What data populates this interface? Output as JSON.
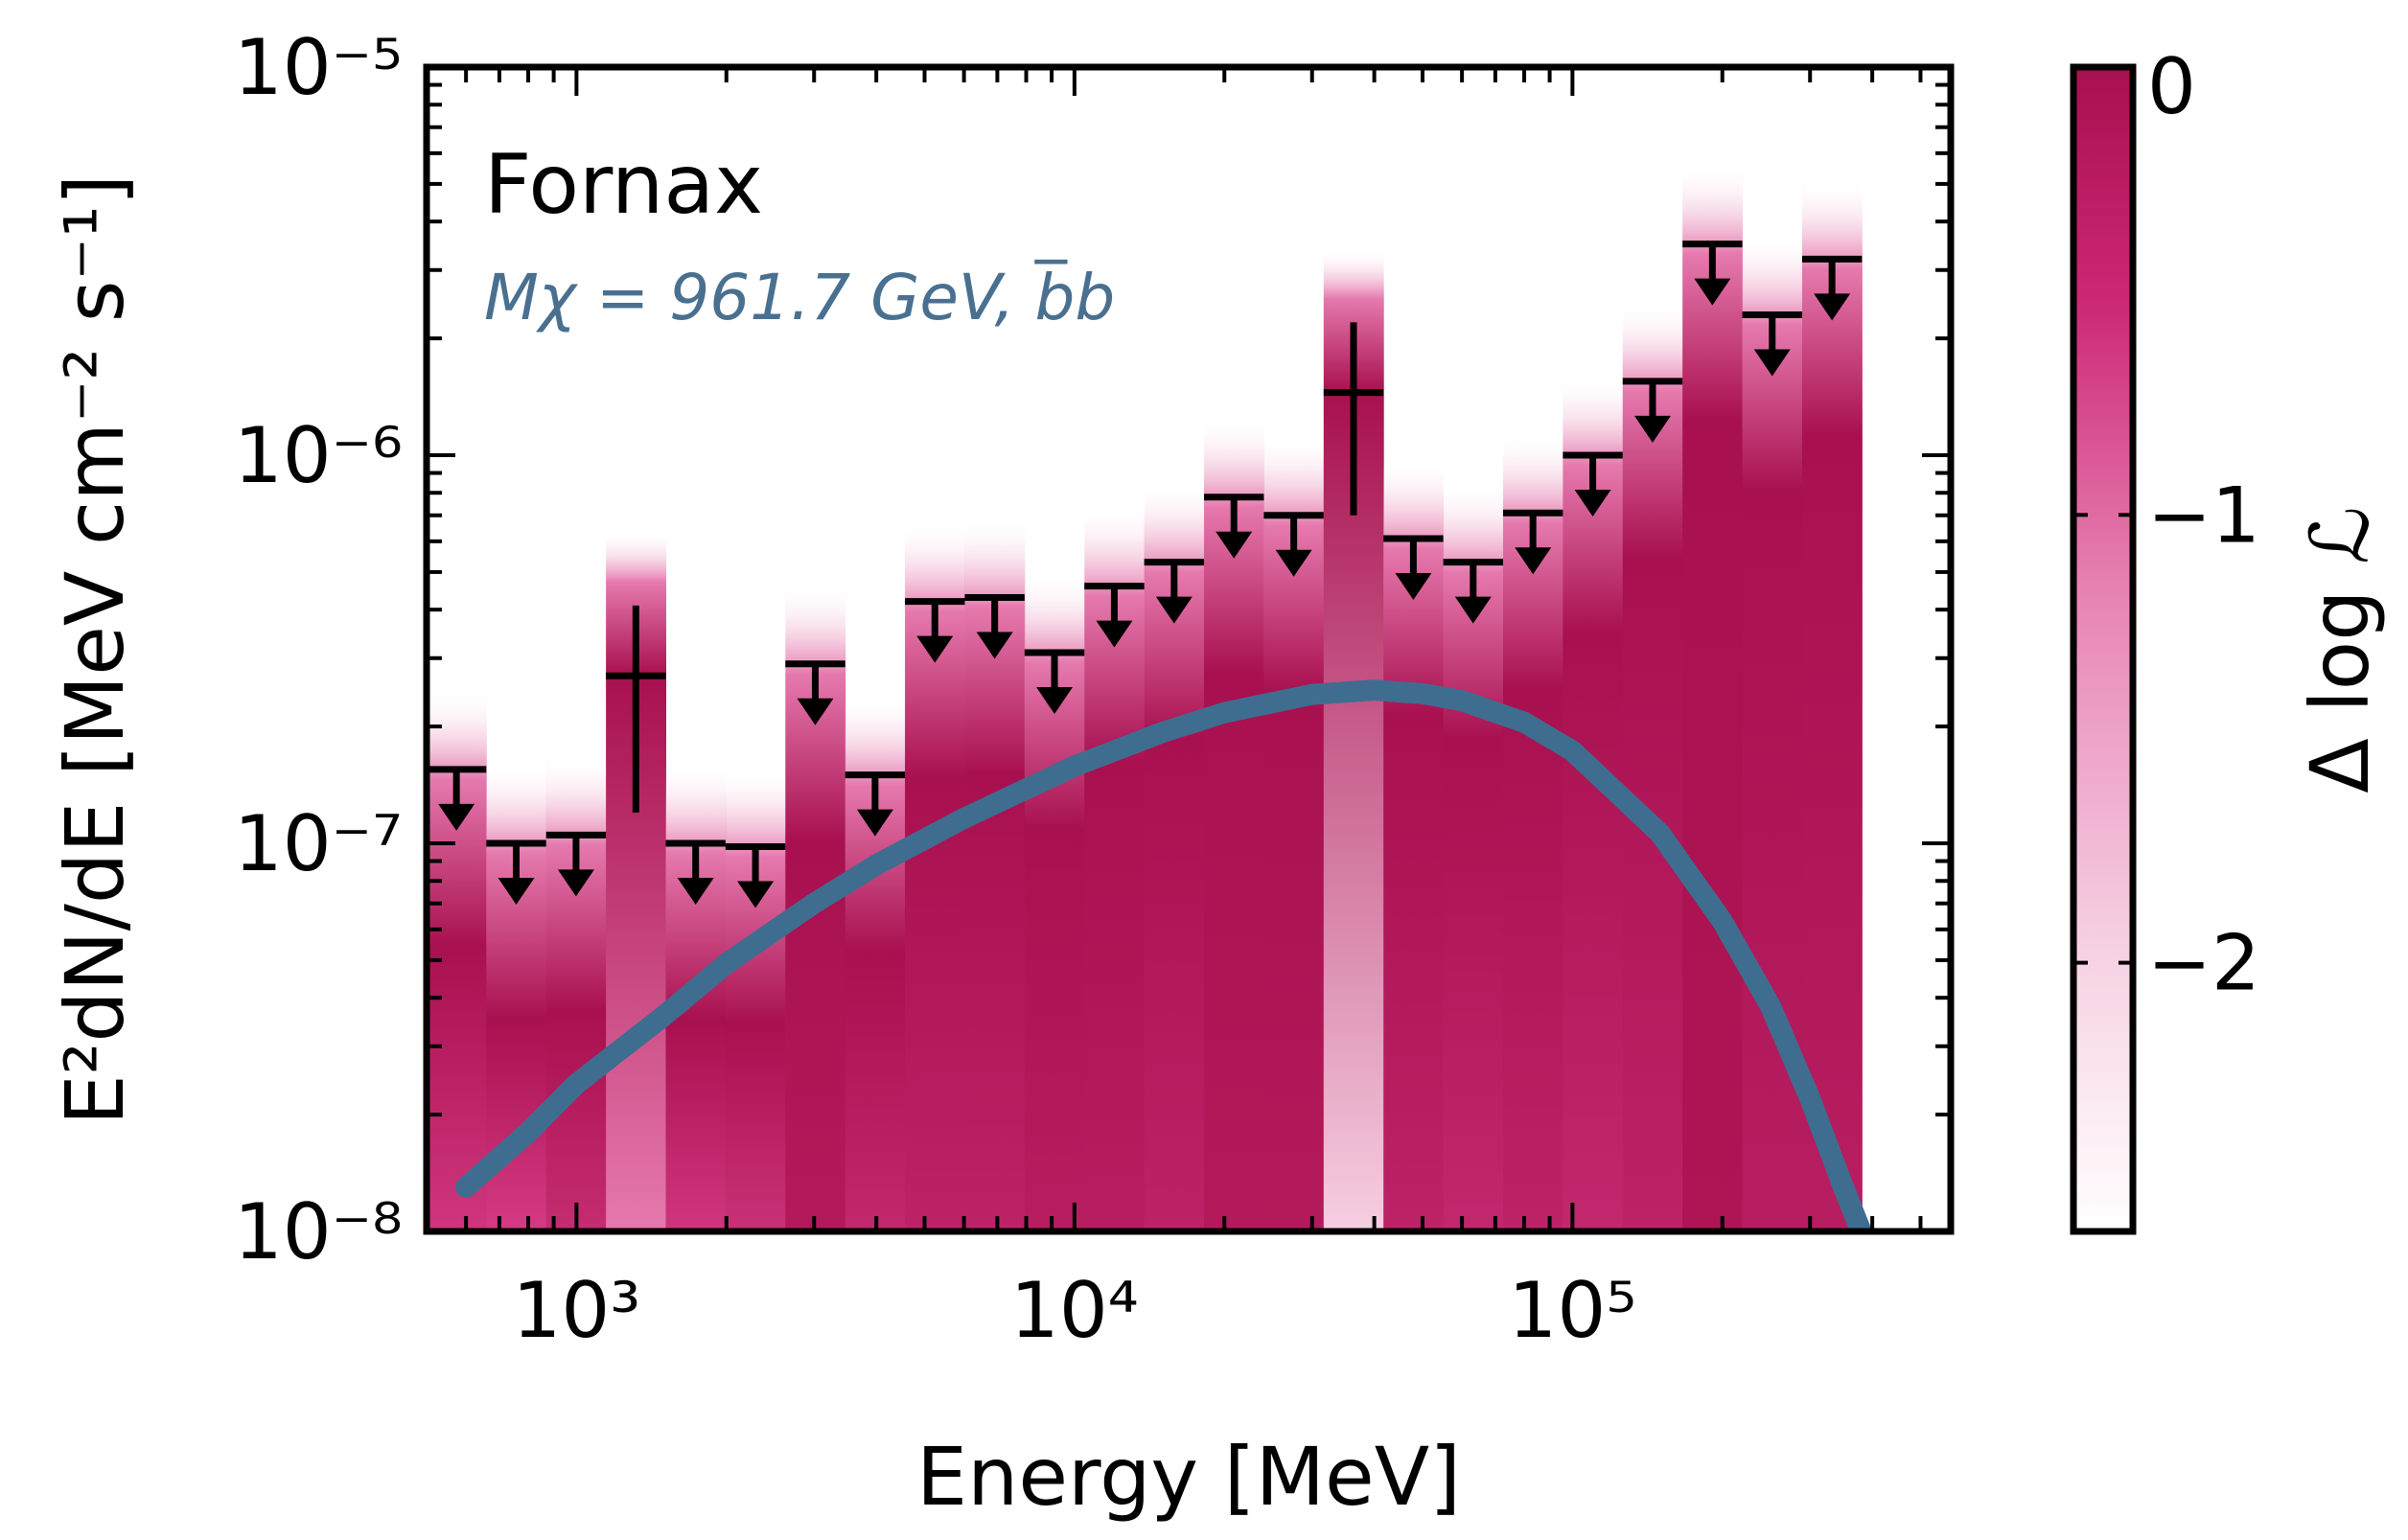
{
  "chart_data": {
    "type": "bar",
    "title": "",
    "xlabel": "Energy [MeV]",
    "ylabel": "E²dN/dE [MeV cm⁻² s⁻¹]",
    "x_scale": "log",
    "y_scale": "log",
    "xlim": [
      500,
      575000
    ],
    "ylim": [
      1e-08,
      1e-05
    ],
    "x_ticks": [
      {
        "value": 1000,
        "label": "10³"
      },
      {
        "value": 10000,
        "label": "10⁴"
      },
      {
        "value": 100000,
        "label": "10⁵"
      }
    ],
    "y_ticks": [
      {
        "value": 1e-08,
        "label": "10⁻⁸"
      },
      {
        "value": 1e-07,
        "label": "10⁻⁷"
      },
      {
        "value": 1e-06,
        "label": "10⁻⁶"
      },
      {
        "value": 1e-05,
        "label": "10⁻⁵"
      }
    ],
    "annotations": {
      "target": "Fornax",
      "model": "Mχ = 961.7 GeV, b̅b"
    },
    "colorbar": {
      "label": "Δ log ℒ",
      "range": [
        -2.6,
        0
      ],
      "ticks": [
        {
          "value": 0,
          "label": "0"
        },
        {
          "value": -1,
          "label": "−1"
        },
        {
          "value": -2,
          "label": "−2"
        }
      ]
    },
    "colors": {
      "dark": "#a8104f",
      "mid": "#d9408a",
      "light": "#f6cfe2",
      "model_curve": "#3f6d8f",
      "model_text": "#4a7090"
    },
    "bins": [
      {
        "e_min": 500,
        "e_max": 659,
        "ul": 1.55e-07,
        "base": 0.6
      },
      {
        "e_min": 659,
        "e_max": 869,
        "ul": 1e-07,
        "base": 0.55
      },
      {
        "e_min": 869,
        "e_max": 1146,
        "ul": 1.05e-07,
        "base": 0.7
      },
      {
        "e_min": 1146,
        "e_max": 1511,
        "flux": 2.7e-07,
        "err_lo": 1.2e-07,
        "err_hi": 4.1e-07,
        "base": 0.3
      },
      {
        "e_min": 1511,
        "e_max": 1992,
        "ul": 1e-07,
        "base": 0.6
      },
      {
        "e_min": 1992,
        "e_max": 2627,
        "ul": 9.8e-08,
        "base": 0.65
      },
      {
        "e_min": 2627,
        "e_max": 3464,
        "ul": 2.9e-07,
        "base": 0.9
      },
      {
        "e_min": 3464,
        "e_max": 4567,
        "ul": 1.5e-07,
        "base": 0.75
      },
      {
        "e_min": 4567,
        "e_max": 6022,
        "ul": 4.2e-07,
        "base": 0.8
      },
      {
        "e_min": 6022,
        "e_max": 7940,
        "ul": 4.3e-07,
        "base": 0.8
      },
      {
        "e_min": 7940,
        "e_max": 10470,
        "ul": 3.1e-07,
        "base": 0.85
      },
      {
        "e_min": 10470,
        "e_max": 13806,
        "ul": 4.6e-07,
        "base": 0.85
      },
      {
        "e_min": 13806,
        "e_max": 18204,
        "ul": 5.3e-07,
        "base": 0.8
      },
      {
        "e_min": 18204,
        "e_max": 24003,
        "ul": 7.8e-07,
        "base": 0.9
      },
      {
        "e_min": 24003,
        "e_max": 31650,
        "ul": 7e-07,
        "base": 0.9
      },
      {
        "e_min": 31650,
        "e_max": 41733,
        "flux": 1.45e-06,
        "err_lo": 7e-07,
        "err_hi": 2.2e-06,
        "base": 0.0
      },
      {
        "e_min": 41733,
        "e_max": 55027,
        "ul": 6.1e-07,
        "base": 0.8
      },
      {
        "e_min": 55027,
        "e_max": 72557,
        "ul": 5.3e-07,
        "base": 0.75
      },
      {
        "e_min": 72557,
        "e_max": 95673,
        "ul": 7.1e-07,
        "base": 0.8
      },
      {
        "e_min": 95673,
        "e_max": 126152,
        "ul": 1e-06,
        "base": 0.75
      },
      {
        "e_min": 126152,
        "e_max": 166341,
        "ul": 1.55e-06,
        "base": 0.8
      },
      {
        "e_min": 166341,
        "e_max": 219332,
        "ul": 3.5e-06,
        "base": 0.95
      },
      {
        "e_min": 219332,
        "e_max": 289206,
        "ul": 2.3e-06,
        "base": 0.85
      },
      {
        "e_min": 289206,
        "e_max": 381340,
        "ul": 3.2e-06,
        "base": 0.85
      }
    ],
    "model_curve": [
      [
        600,
        1.3e-08
      ],
      [
        800,
        1.8e-08
      ],
      [
        1000,
        2.4e-08
      ],
      [
        1500,
        3.6e-08
      ],
      [
        2000,
        4.9e-08
      ],
      [
        3000,
        7e-08
      ],
      [
        4000,
        8.8e-08
      ],
      [
        6000,
        1.16e-07
      ],
      [
        8000,
        1.38e-07
      ],
      [
        10000,
        1.58e-07
      ],
      [
        15000,
        1.93e-07
      ],
      [
        20000,
        2.17e-07
      ],
      [
        30000,
        2.42e-07
      ],
      [
        40000,
        2.48e-07
      ],
      [
        50000,
        2.43e-07
      ],
      [
        60000,
        2.33e-07
      ],
      [
        80000,
        2.05e-07
      ],
      [
        100000,
        1.73e-07
      ],
      [
        150000,
        1.06e-07
      ],
      [
        200000,
        6.3e-08
      ],
      [
        250000,
        3.8e-08
      ],
      [
        300000,
        2.2e-08
      ],
      [
        350000,
        1.3e-08
      ],
      [
        380000,
        1e-08
      ]
    ]
  }
}
